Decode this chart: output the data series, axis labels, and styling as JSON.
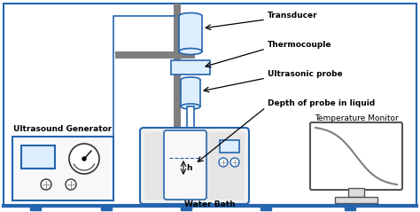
{
  "bg_color": "#ffffff",
  "line_color": "#2565ae",
  "gray_color": "#7f7f7f",
  "label_transducer": "Transducer",
  "label_thermocouple": "Thermocouple",
  "label_probe": "Ultrasonic probe",
  "label_depth": "Depth of probe in liquid",
  "label_generator": "Ultrasound Generator",
  "label_waterbath": "Water Bath",
  "label_tempmonitor": "Temperature Monitor",
  "label_h": "h",
  "font_size": 6.5,
  "font_size_small": 6
}
